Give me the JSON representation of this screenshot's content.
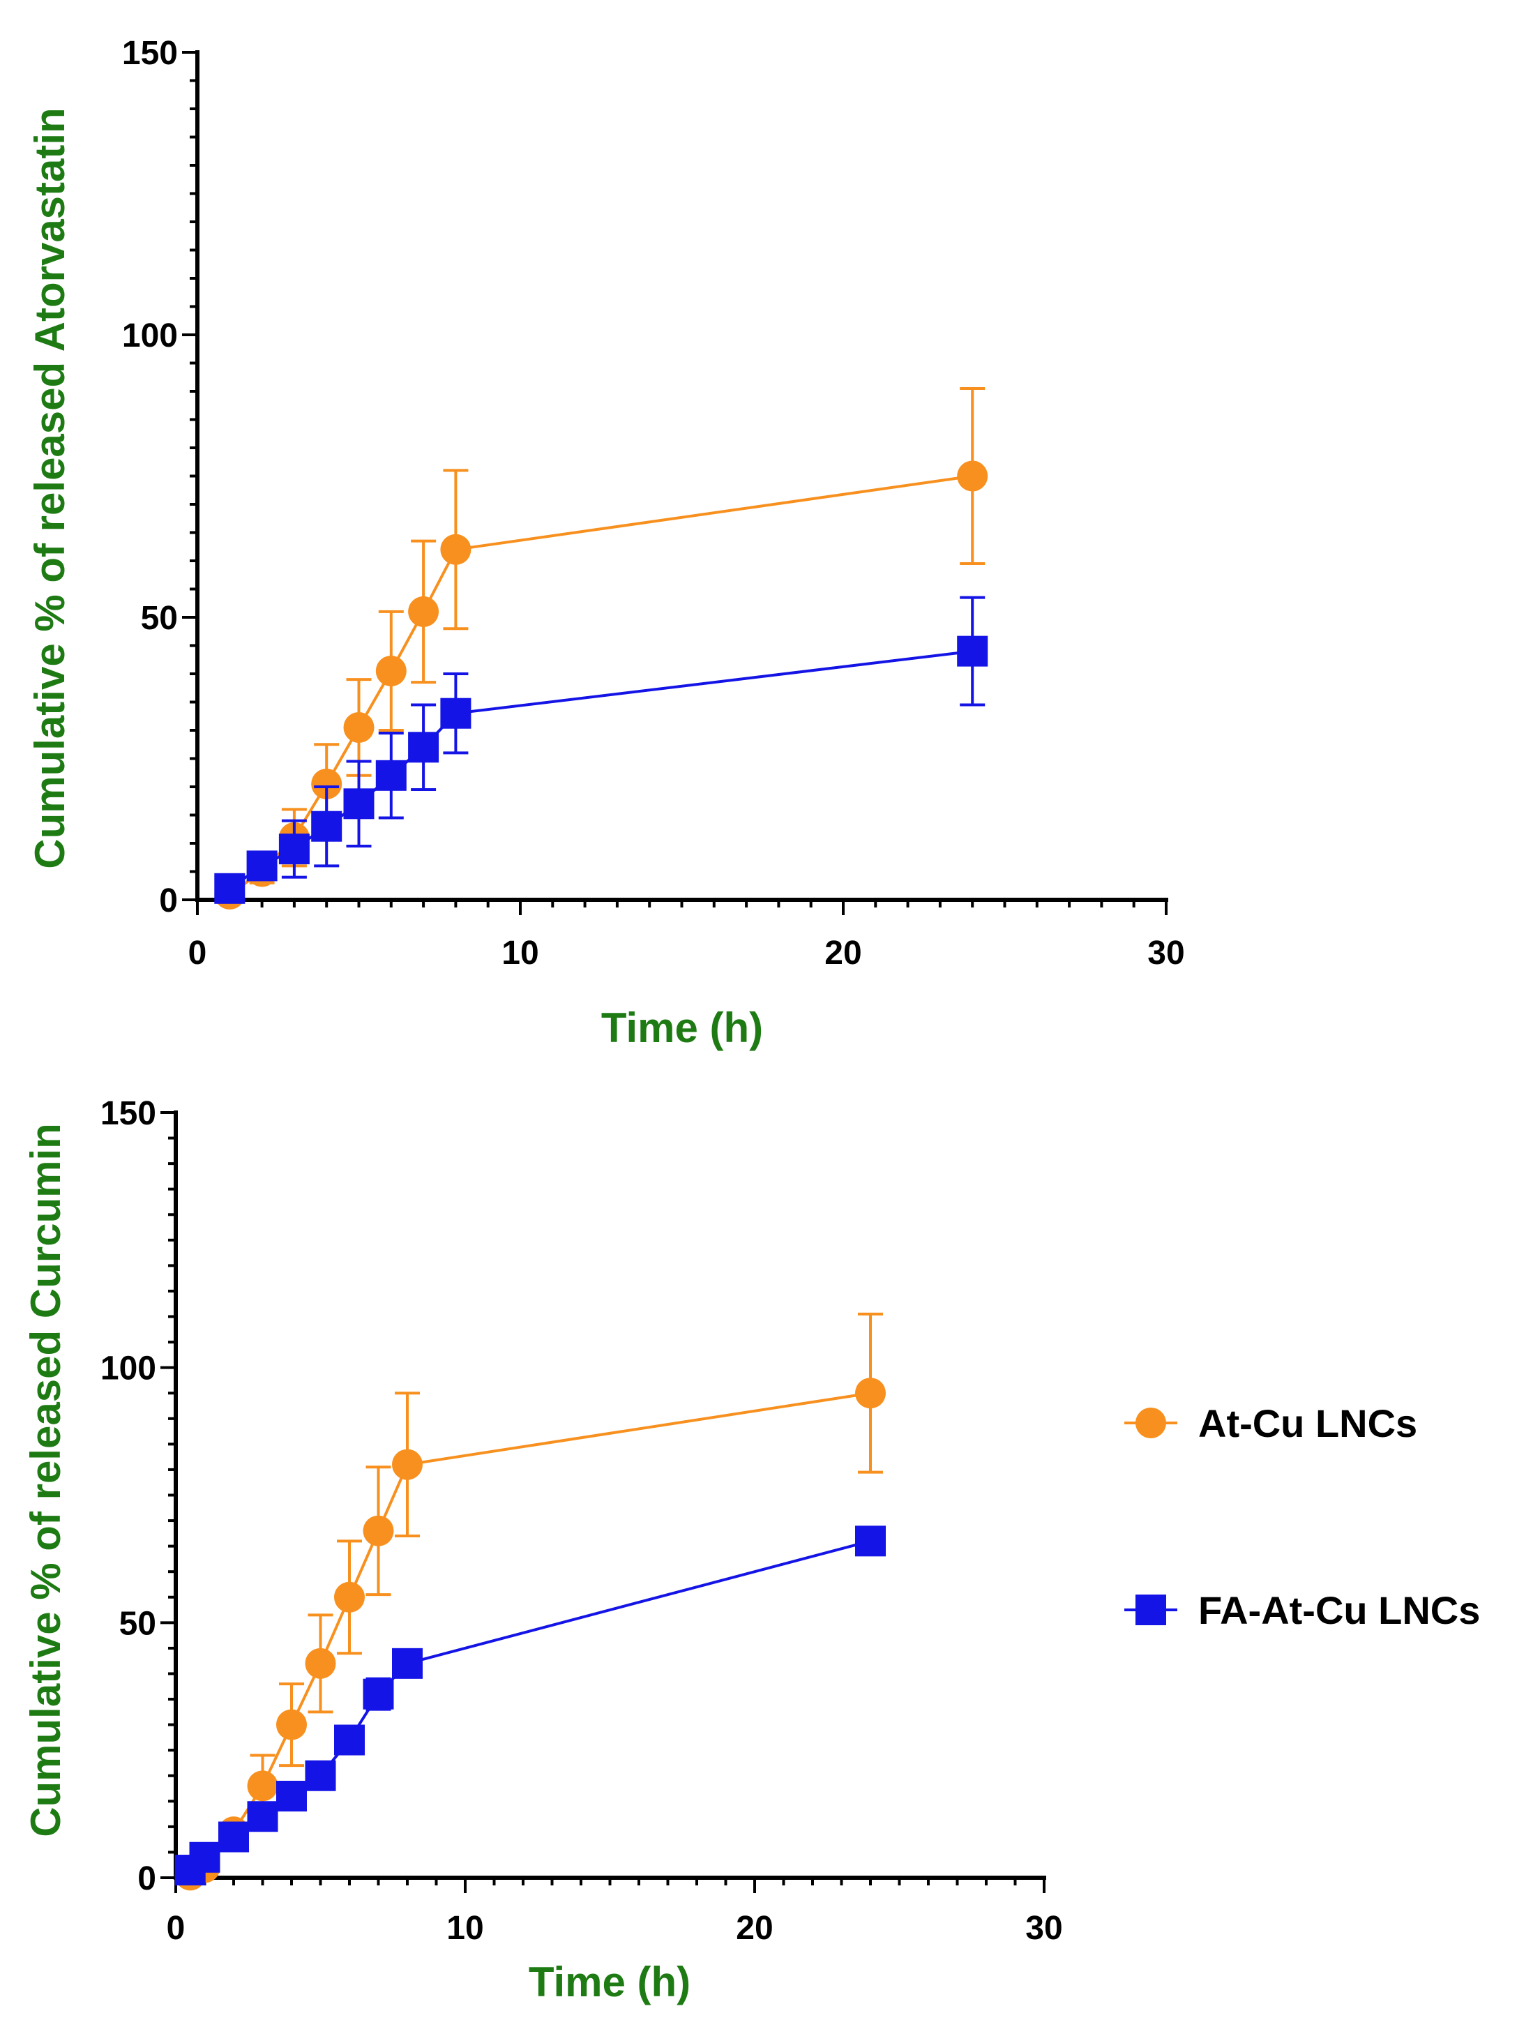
{
  "colors": {
    "title_green": "#1e7b14",
    "orange": "#f7901e",
    "blue": "#1414e6",
    "axis": "#000000"
  },
  "legend": {
    "items": [
      {
        "label": "At-Cu LNCs",
        "series_key": "orange",
        "marker": "circle"
      },
      {
        "label": "FA-At-Cu LNCs",
        "series_key": "blue",
        "marker": "square"
      }
    ]
  },
  "chart_data": [
    {
      "type": "line",
      "ylabel": "Cumulative % of released Atorvastatin",
      "xlabel": "Time (h)",
      "xlim": [
        0,
        30
      ],
      "ylim": [
        0,
        150
      ],
      "xticks": [
        0,
        10,
        20,
        30
      ],
      "yticks": [
        0,
        50,
        100,
        150
      ],
      "series": [
        {
          "name": "At-Cu LNCs",
          "color_key": "orange",
          "marker": "circle",
          "x": [
            1,
            2,
            3,
            4,
            5,
            6,
            7,
            8,
            24
          ],
          "y": [
            1,
            5,
            11,
            20.5,
            30.5,
            40.5,
            51,
            62,
            75
          ],
          "err": [
            0,
            2,
            5,
            7,
            8.5,
            10.5,
            12.5,
            14,
            15.5
          ]
        },
        {
          "name": "FA-At-Cu LNCs",
          "color_key": "blue",
          "marker": "square",
          "x": [
            1,
            2,
            3,
            4,
            5,
            6,
            7,
            8,
            24
          ],
          "y": [
            2,
            6,
            9,
            13,
            17,
            22,
            27,
            33,
            44
          ],
          "err": [
            0,
            2,
            5,
            7,
            7.5,
            7.5,
            7.5,
            7,
            9.5
          ]
        }
      ]
    },
    {
      "type": "line",
      "ylabel": "Cumulative % of released Curcumin",
      "xlabel": "Time (h)",
      "xlim": [
        0,
        30
      ],
      "ylim": [
        0,
        150
      ],
      "xticks": [
        0,
        10,
        20,
        30
      ],
      "yticks": [
        0,
        50,
        100,
        150
      ],
      "series": [
        {
          "name": "At-Cu LNCs",
          "color_key": "orange",
          "marker": "circle",
          "x": [
            0.5,
            1,
            2,
            3,
            4,
            5,
            6,
            7,
            8,
            24
          ],
          "y": [
            0.5,
            2,
            9,
            18,
            30,
            42,
            55,
            68,
            81,
            95
          ],
          "err": [
            0,
            0,
            0,
            6,
            8,
            9.5,
            11,
            12.5,
            14,
            15.5
          ]
        },
        {
          "name": "FA-At-Cu LNCs",
          "color_key": "blue",
          "marker": "square",
          "x": [
            0.5,
            1,
            2,
            3,
            4,
            5,
            6,
            7,
            8,
            24
          ],
          "y": [
            1.5,
            4,
            8,
            12,
            16,
            20,
            27,
            36,
            42,
            66
          ],
          "err": [
            0,
            0,
            0,
            1.5,
            1.5,
            1.5,
            1.5,
            3,
            1.5,
            0
          ]
        }
      ]
    }
  ]
}
